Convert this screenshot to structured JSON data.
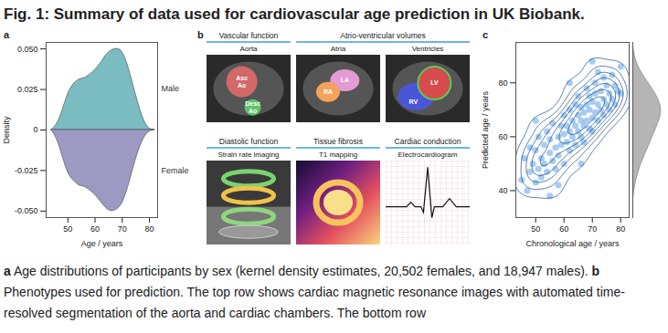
{
  "title": "Fig. 1: Summary of data used for cardiovascular age prediction in UK Biobank.",
  "chart_data": [
    {
      "panel": "a",
      "type": "area",
      "x_label": "Age / years",
      "y_label": "Density",
      "x": [
        44,
        46,
        48,
        50,
        52,
        54,
        56,
        58,
        60,
        62,
        64,
        66,
        68,
        70,
        72,
        74,
        76,
        78,
        80,
        82
      ],
      "series": [
        {
          "name": "Male",
          "color": "#7bbcc0",
          "values": [
            0,
            0.004,
            0.012,
            0.022,
            0.028,
            0.031,
            0.032,
            0.034,
            0.037,
            0.041,
            0.046,
            0.049,
            0.05,
            0.048,
            0.04,
            0.028,
            0.016,
            0.006,
            0.001,
            0
          ]
        },
        {
          "name": "Female",
          "color": "#9c9ac2",
          "values": [
            0,
            -0.006,
            -0.016,
            -0.026,
            -0.031,
            -0.034,
            -0.035,
            -0.037,
            -0.04,
            -0.044,
            -0.048,
            -0.05,
            -0.049,
            -0.045,
            -0.036,
            -0.024,
            -0.013,
            -0.005,
            -0.001,
            0
          ]
        }
      ],
      "xlim": [
        42,
        83
      ],
      "xticks": [
        50,
        60,
        70,
        80
      ],
      "ylim": [
        -0.054,
        0.054
      ],
      "yticks": [
        {
          "value": -0.05,
          "label": "-0.050"
        },
        -0.025,
        0,
        0.025,
        {
          "value": 0.05,
          "label": "0.050"
        }
      ]
    },
    {
      "panel": "c",
      "type": "scatter",
      "x_label": "Chronological age / years",
      "y_label": "Predicted age / years",
      "color": "#3d8fe0",
      "x": [
        45,
        46,
        47,
        48,
        48,
        49,
        50,
        50,
        51,
        51,
        52,
        52,
        53,
        53,
        54,
        54,
        55,
        55,
        56,
        56,
        57,
        57,
        58,
        58,
        59,
        59,
        60,
        60,
        60,
        61,
        61,
        62,
        62,
        62,
        63,
        63,
        64,
        64,
        64,
        65,
        65,
        65,
        66,
        66,
        66,
        67,
        67,
        67,
        68,
        68,
        68,
        69,
        69,
        69,
        70,
        70,
        70,
        71,
        71,
        71,
        72,
        72,
        72,
        73,
        73,
        74,
        74,
        74,
        75,
        75,
        76,
        76,
        77,
        77,
        78,
        78,
        79,
        80,
        80,
        58,
        62,
        66,
        70,
        50,
        55
      ],
      "values": [
        44,
        52,
        40,
        47,
        56,
        50,
        43,
        55,
        48,
        60,
        52,
        45,
        57,
        50,
        62,
        47,
        54,
        59,
        51,
        65,
        56,
        48,
        60,
        53,
        64,
        57,
        50,
        61,
        68,
        58,
        64,
        55,
        62,
        70,
        60,
        66,
        57,
        64,
        72,
        62,
        68,
        75,
        60,
        66,
        71,
        64,
        69,
        58,
        66,
        72,
        78,
        63,
        70,
        75,
        67,
        73,
        62,
        69,
        76,
        80,
        66,
        72,
        84,
        70,
        77,
        68,
        74,
        82,
        72,
        79,
        70,
        76,
        74,
        83,
        72,
        79,
        77,
        76,
        86,
        42,
        80,
        50,
        88,
        66,
        38
      ],
      "xlim": [
        43,
        83
      ],
      "xticks": [
        50,
        60,
        70,
        80
      ],
      "ylim": [
        30,
        95
      ],
      "yticks": [
        40,
        60,
        80
      ],
      "marginal": {
        "type": "area",
        "color": "#b5b5b5",
        "tick_labels": false,
        "x": [
          35,
          40,
          45,
          50,
          55,
          60,
          65,
          70,
          75,
          80,
          85,
          90,
          95
        ],
        "values": [
          0,
          0.002,
          0.006,
          0.012,
          0.02,
          0.028,
          0.036,
          0.04,
          0.034,
          0.022,
          0.01,
          0.003,
          0
        ],
        "ylim": [
          0,
          0.044
        ]
      }
    }
  ],
  "panel_b": {
    "panel": "b",
    "rows": [
      [
        {
          "title": "Vascular function",
          "panels": [
            {
              "title": "Aorta",
              "labels": [
                "Asc Ao",
                "Desc Ao"
              ]
            }
          ]
        },
        {
          "title": "Atrio-ventricular volumes",
          "panels": [
            {
              "title": "Atria",
              "labels": [
                "LA",
                "RA"
              ]
            },
            {
              "title": "Ventricles",
              "labels": [
                "LV",
                "RV"
              ]
            }
          ]
        }
      ],
      [
        {
          "title": "Diastolic function",
          "panels": [
            {
              "title": "Strain rate imaging"
            }
          ]
        },
        {
          "title": "Tissue fibrosis",
          "panels": [
            {
              "title": "T1 mapping"
            }
          ]
        },
        {
          "title": "Cardiac conduction",
          "panels": [
            {
              "title": "Electrocardiogram"
            }
          ]
        }
      ]
    ]
  },
  "caption": [
    {
      "bold": "a",
      "text": " Age distributions of participants by sex (kernel density estimates, 20,502 females, and 18,947 males). "
    },
    {
      "bold": "b",
      "text": " Phenotypes used for prediction. The top row shows cardiac magnetic resonance images with automated time-resolved segmentation of the aorta and cardiac chambers. The bottom row"
    }
  ]
}
